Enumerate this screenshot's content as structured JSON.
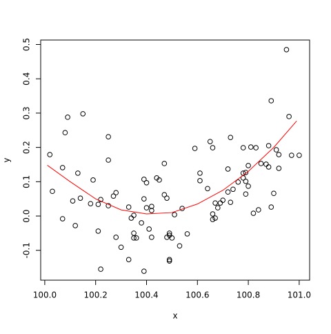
{
  "chart_data": {
    "type": "scatter",
    "x_label": "x",
    "y_label": "y",
    "xlim": [
      99.984,
      101.041
    ],
    "ylim": [
      -0.187,
      0.513
    ],
    "xticks": [
      {
        "value": 100,
        "label": "100.0"
      },
      {
        "value": 100.2,
        "label": "100.2"
      },
      {
        "value": 100.4,
        "label": "100.4"
      },
      {
        "value": 100.6,
        "label": "100.6"
      },
      {
        "value": 100.8,
        "label": "100.8"
      },
      {
        "value": 101,
        "label": "101.0"
      }
    ],
    "yticks": [
      -0.1,
      {
        "value": 0,
        "label": "0.0"
      },
      0.1,
      0.2,
      0.3,
      0.4,
      0.5
    ],
    "series": [
      {
        "type": "scatter",
        "color": "#000000",
        "x": [
          100.02,
          100.03,
          100.07,
          100.07,
          100.08,
          100.09,
          100.11,
          100.12,
          100.13,
          100.14,
          100.15,
          100.18,
          100.19,
          100.21,
          100.21,
          100.22,
          100.22,
          100.25,
          100.25,
          100.25,
          100.27,
          100.28,
          100.28,
          100.3,
          100.33,
          100.33,
          100.34,
          100.35,
          100.35,
          100.35,
          100.36,
          100.38,
          100.39,
          100.39,
          100.39,
          100.4,
          100.4,
          100.41,
          100.42,
          100.42,
          100.42,
          100.44,
          100.45,
          100.47,
          100.47,
          100.48,
          100.48,
          100.49,
          100.49,
          100.49,
          100.49,
          100.5,
          100.51,
          100.53,
          100.54,
          100.56,
          100.59,
          100.61,
          100.61,
          100.64,
          100.65,
          100.66,
          100.66,
          100.66,
          100.67,
          100.67,
          100.68,
          100.69,
          100.7,
          100.72,
          100.72,
          100.73,
          100.73,
          100.74,
          100.76,
          100.78,
          100.78,
          100.78,
          100.79,
          100.79,
          100.79,
          100.8,
          100.8,
          100.81,
          100.82,
          100.83,
          100.84,
          100.85,
          100.87,
          100.88,
          100.88,
          100.89,
          100.89,
          100.9,
          100.91,
          100.92,
          100.92,
          100.95,
          100.96,
          100.97,
          101.0
        ],
        "values": [
          0.179,
          0.072,
          0.141,
          -0.008,
          0.243,
          0.288,
          0.044,
          -0.028,
          0.125,
          0.052,
          0.298,
          0.036,
          0.105,
          0.034,
          -0.044,
          0.048,
          -0.155,
          0.163,
          0.231,
          0.03,
          0.058,
          0.068,
          -0.062,
          -0.091,
          -0.127,
          0.026,
          -0.006,
          -0.05,
          0.002,
          -0.064,
          -0.064,
          -0.02,
          0.107,
          -0.161,
          0.05,
          0.097,
          0.024,
          -0.038,
          0.028,
          0.016,
          -0.062,
          0.111,
          0.105,
          0.062,
          0.153,
          -0.062,
          0.052,
          -0.056,
          -0.127,
          -0.131,
          -0.05,
          -0.064,
          0.004,
          -0.087,
          0.022,
          -0.052,
          0.197,
          0.125,
          0.103,
          0.08,
          0.217,
          0.006,
          0.199,
          -0.01,
          0.038,
          -0.006,
          0.024,
          0.038,
          0.046,
          0.137,
          0.07,
          0.04,
          0.229,
          0.078,
          0.099,
          0.111,
          0.199,
          0.125,
          0.127,
          0.064,
          0.101,
          0.147,
          0.087,
          0.201,
          0.008,
          0.199,
          0.018,
          0.153,
          0.151,
          0.143,
          0.205,
          0.336,
          0.026,
          0.066,
          0.193,
          0.139,
          0.179,
          0.485,
          0.29,
          0.177,
          0.177
        ]
      },
      {
        "type": "line",
        "color": "#ff0000",
        "x": [
          100.01,
          100.1,
          100.2,
          100.3,
          100.4,
          100.5,
          100.6,
          100.7,
          100.8,
          100.9,
          100.99
        ],
        "values": [
          0.148,
          0.1,
          0.05,
          0.018,
          0.006,
          0.01,
          0.035,
          0.075,
          0.13,
          0.2,
          0.277
        ]
      }
    ]
  }
}
